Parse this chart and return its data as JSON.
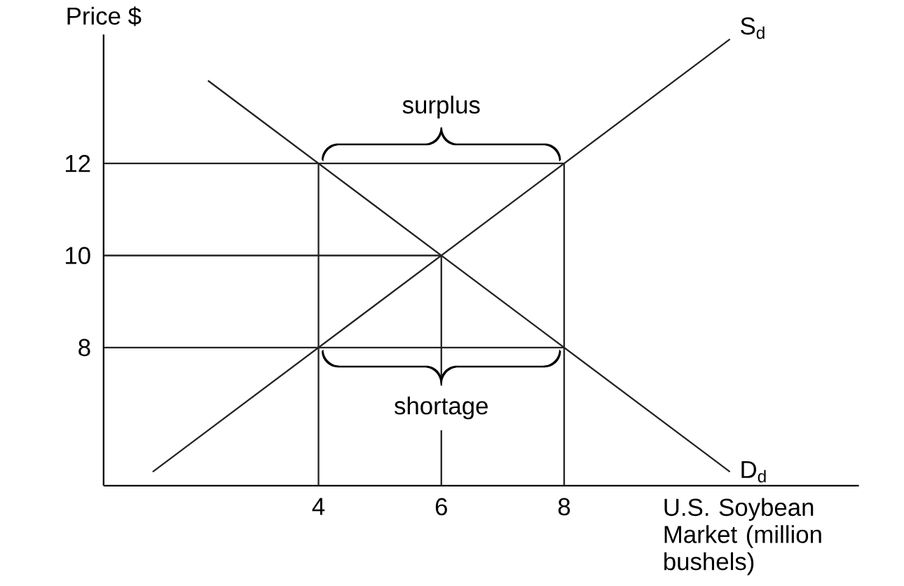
{
  "chart_data": {
    "type": "line",
    "xlabel": "U.S. Soybean Market (million bushels)",
    "ylabel": "Price $",
    "xlim": [
      0.5,
      12.8
    ],
    "ylim": [
      5,
      14.8
    ],
    "xticks": [
      4,
      6,
      8
    ],
    "yticks": [
      8,
      10,
      12
    ],
    "series": [
      {
        "name": "S$_{d}$",
        "color": "#222222",
        "x": [
          1.3,
          10.7
        ],
        "values": [
          5.3,
          14.7
        ]
      },
      {
        "name": "D$_{d}$",
        "color": "#222222",
        "x": [
          2.2,
          10.7
        ],
        "values": [
          13.8,
          5.3
        ]
      },
      {
        "color": "#222222",
        "x": [
          0.5,
          8
        ],
        "values": [
          12,
          12
        ]
      },
      {
        "color": "#222222",
        "x": [
          0.5,
          6
        ],
        "values": [
          10,
          10
        ]
      },
      {
        "color": "#222222",
        "x": [
          0.5,
          8
        ],
        "values": [
          8,
          8
        ]
      },
      {
        "color": "#222222",
        "x": [
          4,
          4
        ],
        "values": [
          5,
          12
        ]
      },
      {
        "color": "#222222",
        "x": [
          6,
          6
        ],
        "values": [
          5,
          10
        ]
      },
      {
        "color": "#222222",
        "x": [
          8,
          8
        ],
        "values": [
          5,
          12
        ]
      }
    ],
    "annotations": [
      {
        "text": "surplus",
        "x": 6,
        "y": 12
      },
      {
        "text": "shortage",
        "x": 6,
        "y": 8
      }
    ]
  }
}
